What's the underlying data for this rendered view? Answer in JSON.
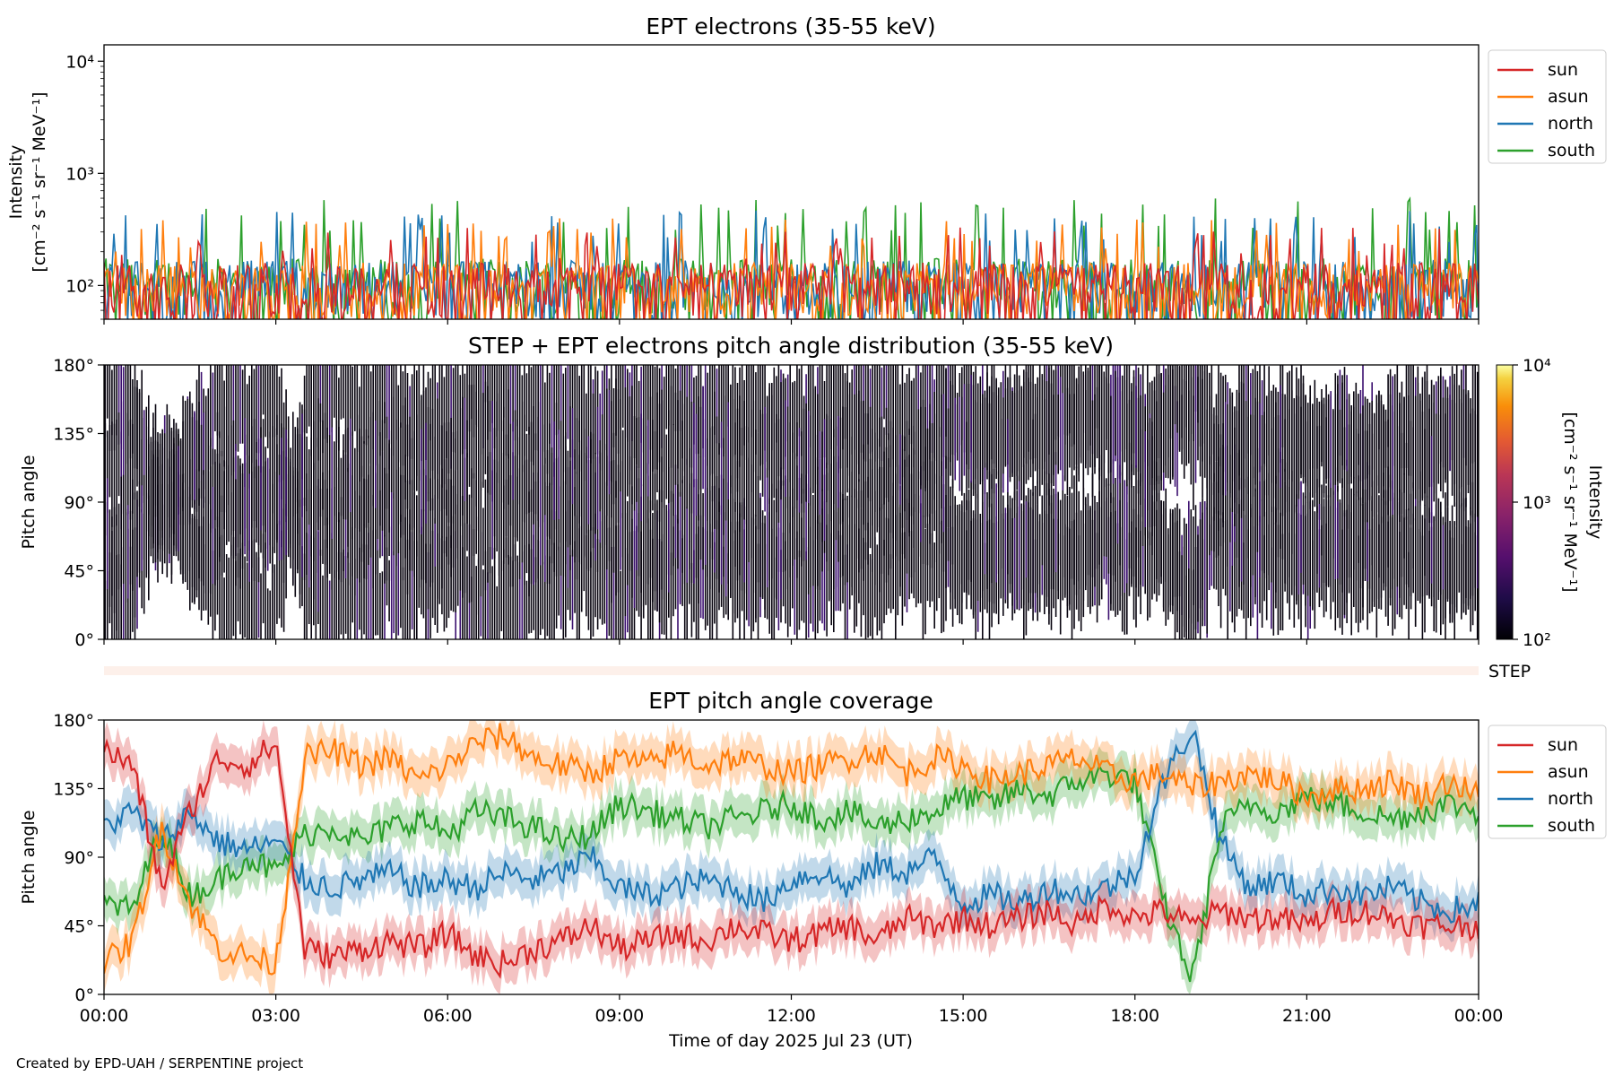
{
  "footer": {
    "credit": "Created by EPD-UAH / SERPENTINE project"
  },
  "colors": {
    "sun": "#d62728",
    "asun": "#ff7f0e",
    "north": "#1f77b4",
    "south": "#2ca02c",
    "step_strip": "#fdf0ea"
  },
  "step_label": "STEP",
  "x_axis": {
    "label": "Time of day 2025 Jul 23 (UT)",
    "ticks": [
      "00:00",
      "03:00",
      "06:00",
      "09:00",
      "12:00",
      "15:00",
      "18:00",
      "21:00",
      "00:00"
    ],
    "range_hours": [
      0,
      24
    ]
  },
  "chart_data": [
    {
      "type": "line",
      "title": "EPT electrons (35-55 keV)",
      "ylabel_line1": "Intensity",
      "ylabel_line2": "[cm⁻² s⁻¹ sr⁻¹ MeV⁻¹]",
      "yscale": "log",
      "ylim": [
        50,
        14000
      ],
      "yticks": [
        {
          "value": 100,
          "label": "10²"
        },
        {
          "value": 1000,
          "label": "10³"
        },
        {
          "value": 10000,
          "label": "10⁴"
        }
      ],
      "legend_position": "outside-right",
      "series": [
        {
          "name": "sun",
          "key": "sun",
          "baseline": 110,
          "peak": 330
        },
        {
          "name": "asun",
          "key": "asun",
          "baseline": 110,
          "peak": 400
        },
        {
          "name": "north",
          "key": "north",
          "baseline": 115,
          "peak": 480
        },
        {
          "name": "south",
          "key": "south",
          "baseline": 120,
          "peak": 600
        }
      ]
    },
    {
      "type": "heatmap",
      "title": "STEP + EPT electrons pitch angle distribution (35-55 keV)",
      "ylabel": "Pitch angle",
      "ylim": [
        0,
        180
      ],
      "yticks": [
        "0°",
        "45°",
        "90°",
        "135°",
        "180°"
      ],
      "colorbar": {
        "label_line1": "Intensity",
        "label_line2": "[cm⁻² s⁻¹ sr⁻¹ MeV⁻¹]",
        "scale": "log",
        "range": [
          100,
          10000
        ],
        "ticks": [
          "10²",
          "10³",
          "10⁴"
        ],
        "colormap": "inferno"
      }
    },
    {
      "type": "line",
      "title": "EPT pitch angle coverage",
      "ylabel": "Pitch angle",
      "ylim": [
        0,
        180
      ],
      "yticks": [
        "0°",
        "45°",
        "90°",
        "135°",
        "180°"
      ],
      "legend_position": "outside-right",
      "series": [
        {
          "name": "sun",
          "key": "sun",
          "x": [
            0,
            0.5,
            1,
            1.5,
            2,
            2.5,
            3,
            3.5,
            4,
            4.5,
            5,
            5.5,
            6,
            6.5,
            7,
            7.5,
            8,
            8.5,
            9,
            9.5,
            10,
            10.5,
            11,
            11.5,
            12,
            12.5,
            13,
            13.5,
            14,
            14.5,
            15,
            15.5,
            16,
            16.5,
            17,
            17.5,
            18,
            18.5,
            19,
            19.5,
            20,
            20.5,
            21,
            21.5,
            22,
            22.5,
            23,
            23.5,
            24
          ],
          "y": [
            160,
            150,
            70,
            120,
            155,
            150,
            165,
            30,
            25,
            30,
            35,
            30,
            40,
            25,
            20,
            30,
            35,
            45,
            30,
            35,
            40,
            35,
            45,
            40,
            35,
            40,
            45,
            35,
            50,
            45,
            50,
            45,
            50,
            55,
            45,
            60,
            50,
            55,
            45,
            55,
            50,
            50,
            45,
            55,
            55,
            50,
            45,
            45,
            45
          ]
        },
        {
          "name": "asun",
          "key": "asun",
          "x": [
            0,
            0.5,
            1,
            1.5,
            2,
            2.5,
            3,
            3.5,
            4,
            4.5,
            5,
            5.5,
            6,
            6.5,
            7,
            7.5,
            8,
            8.5,
            9,
            9.5,
            10,
            10.5,
            11,
            11.5,
            12,
            12.5,
            13,
            13.5,
            14,
            14.5,
            15,
            15.5,
            16,
            16.5,
            17,
            17.5,
            18,
            18.5,
            19,
            19.5,
            20,
            20.5,
            21,
            21.5,
            22,
            22.5,
            23,
            23.5,
            24
          ],
          "y": [
            20,
            35,
            110,
            60,
            30,
            25,
            20,
            155,
            160,
            150,
            155,
            140,
            150,
            165,
            170,
            155,
            150,
            145,
            155,
            150,
            160,
            150,
            155,
            150,
            145,
            150,
            155,
            160,
            145,
            155,
            150,
            140,
            145,
            150,
            155,
            145,
            140,
            145,
            135,
            140,
            145,
            140,
            130,
            135,
            135,
            140,
            130,
            140,
            130
          ]
        },
        {
          "name": "north",
          "key": "north",
          "x": [
            0,
            0.5,
            1,
            1.5,
            2,
            2.5,
            3,
            3.5,
            4,
            4.5,
            5,
            5.5,
            6,
            6.5,
            7,
            7.5,
            8,
            8.5,
            9,
            9.5,
            10,
            10.5,
            11,
            11.5,
            12,
            12.5,
            13,
            13.5,
            14,
            14.5,
            15,
            15.5,
            16,
            16.5,
            17,
            17.5,
            18,
            18.5,
            19,
            19.5,
            20,
            20.5,
            21,
            21.5,
            22,
            22.5,
            23,
            23.5,
            24
          ],
          "y": [
            110,
            120,
            100,
            120,
            100,
            95,
            100,
            75,
            70,
            75,
            80,
            70,
            75,
            70,
            80,
            75,
            80,
            90,
            70,
            65,
            70,
            75,
            70,
            60,
            75,
            80,
            70,
            85,
            80,
            90,
            60,
            65,
            60,
            70,
            65,
            70,
            80,
            140,
            175,
            100,
            70,
            75,
            65,
            70,
            65,
            70,
            60,
            55,
            60
          ]
        },
        {
          "name": "south",
          "key": "south",
          "x": [
            0,
            0.5,
            1,
            1.5,
            2,
            2.5,
            3,
            3.5,
            4,
            4.5,
            5,
            5.5,
            6,
            6.5,
            7,
            7.5,
            8,
            8.5,
            9,
            9.5,
            10,
            10.5,
            11,
            11.5,
            12,
            12.5,
            13,
            13.5,
            14,
            14.5,
            15,
            15.5,
            16,
            16.5,
            17,
            17.5,
            18,
            18.5,
            19,
            19.5,
            20,
            20.5,
            21,
            21.5,
            22,
            22.5,
            23,
            23.5,
            24
          ],
          "y": [
            60,
            55,
            110,
            65,
            75,
            90,
            80,
            105,
            110,
            100,
            110,
            115,
            105,
            120,
            115,
            110,
            100,
            105,
            125,
            120,
            115,
            110,
            115,
            120,
            125,
            115,
            120,
            110,
            115,
            120,
            130,
            125,
            135,
            130,
            140,
            145,
            140,
            60,
            10,
            110,
            125,
            120,
            130,
            125,
            120,
            115,
            120,
            125,
            120
          ]
        }
      ]
    }
  ]
}
